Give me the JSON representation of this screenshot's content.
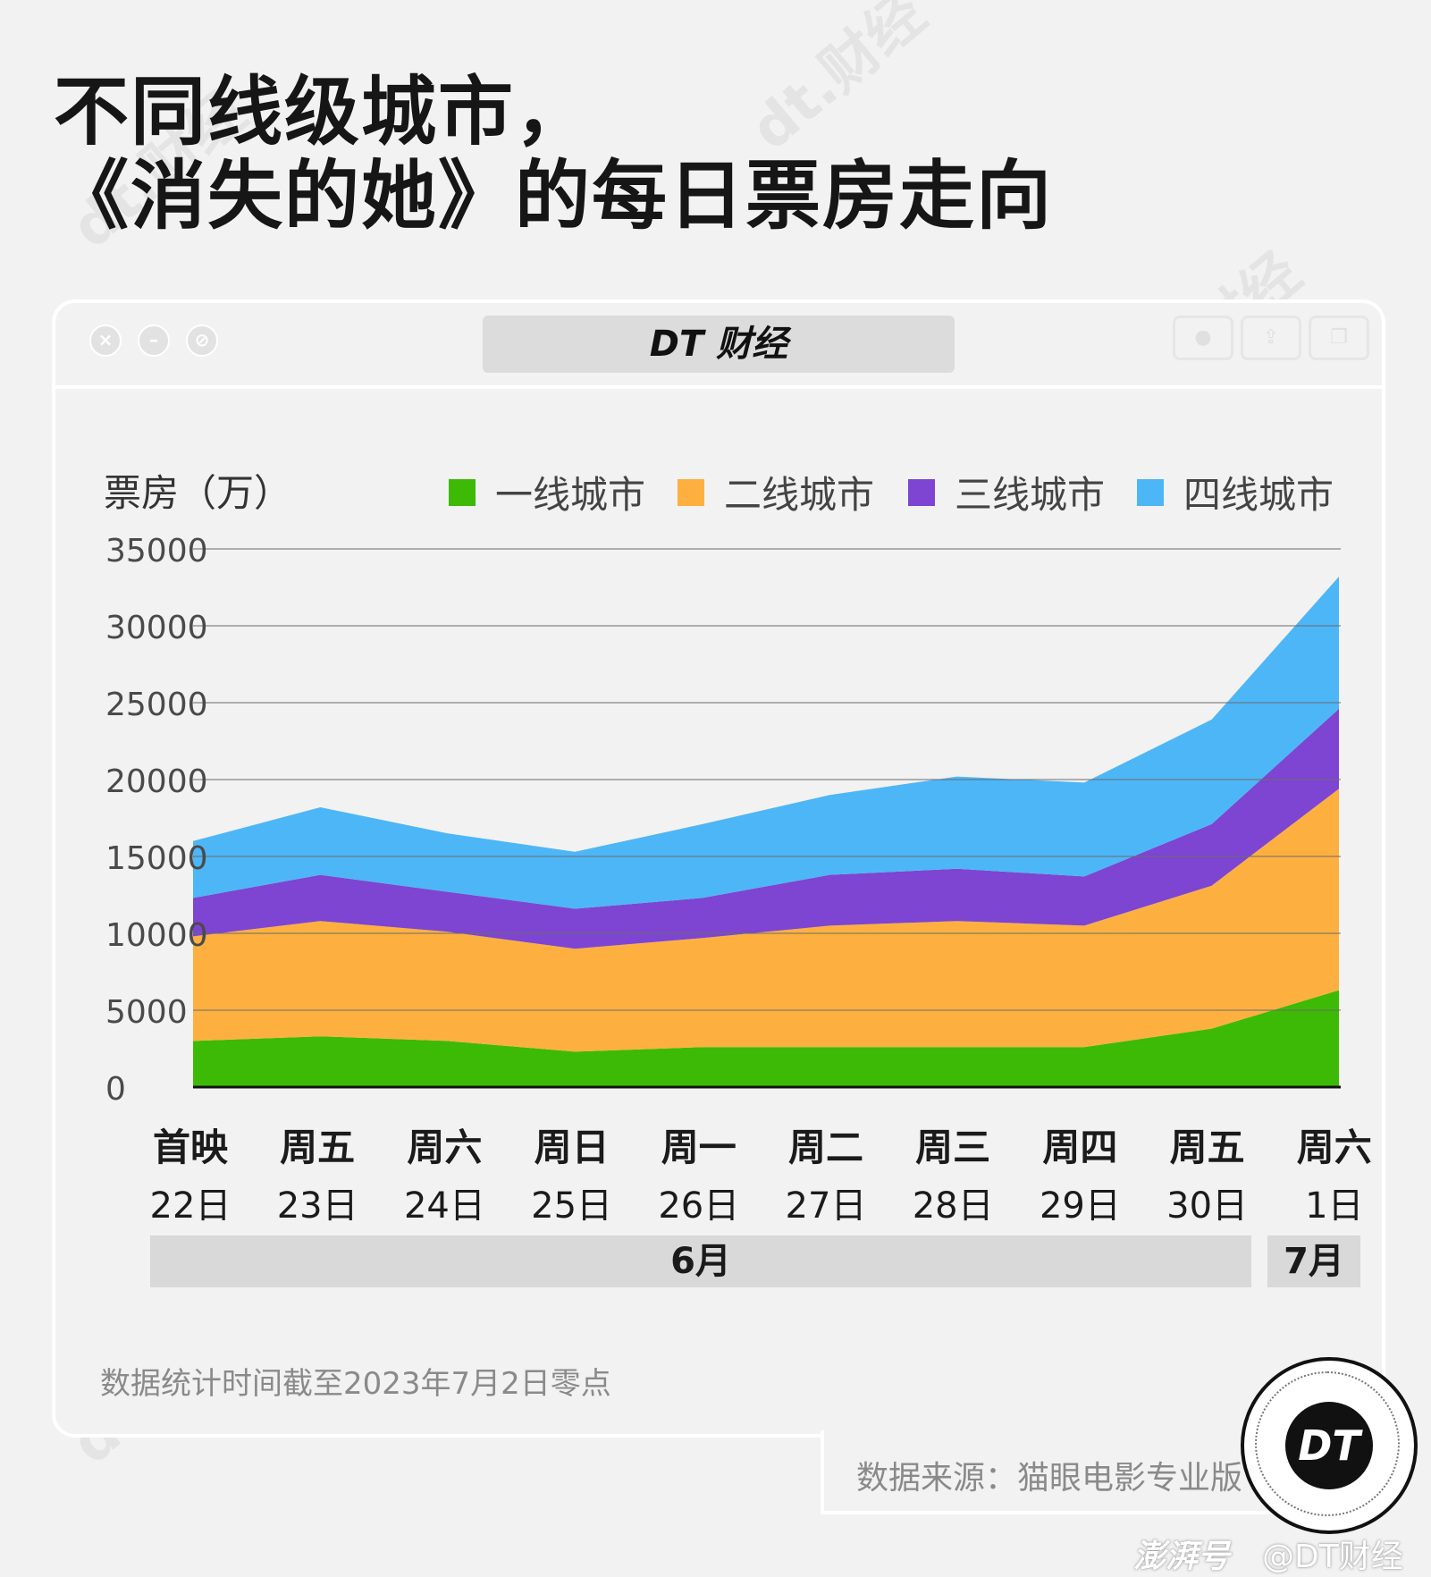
{
  "title_line1": "不同线级城市，",
  "title_line2": "《消失的她》的每日票房走向",
  "brand": "DT 财经",
  "badge": "DT",
  "watermark_text": "dt.财经",
  "chart_data": {
    "type": "area",
    "stacked": true,
    "ylabel": "票房（万）",
    "ylim": [
      0,
      35000
    ],
    "yticks": [
      0,
      5000,
      10000,
      15000,
      20000,
      25000,
      30000,
      35000
    ],
    "grid": true,
    "legend_position": "top-right",
    "categories": [
      "22日",
      "23日",
      "24日",
      "25日",
      "26日",
      "27日",
      "28日",
      "29日",
      "30日",
      "1日"
    ],
    "weekdays": [
      "首映",
      "周五",
      "周六",
      "周日",
      "周一",
      "周二",
      "周三",
      "周四",
      "周五",
      "周六"
    ],
    "months": [
      {
        "label": "6月",
        "span": 9
      },
      {
        "label": "7月",
        "span": 1
      }
    ],
    "series": [
      {
        "name": "一线城市",
        "color": "#3dba06",
        "values": [
          3000,
          3300,
          3000,
          2300,
          2600,
          2600,
          2600,
          2600,
          3800,
          6300
        ]
      },
      {
        "name": "二线城市",
        "color": "#fdb040",
        "values": [
          6800,
          7500,
          7100,
          6700,
          7100,
          7900,
          8200,
          7900,
          9300,
          13100
        ]
      },
      {
        "name": "三线城市",
        "color": "#7d45d1",
        "values": [
          2500,
          3000,
          2600,
          2600,
          2600,
          3300,
          3400,
          3200,
          4000,
          5200
        ]
      },
      {
        "name": "四线城市",
        "color": "#4db6f7",
        "values": [
          3700,
          4400,
          3800,
          3700,
          4800,
          5200,
          6000,
          6100,
          6800,
          8600
        ]
      }
    ]
  },
  "footnote": "数据统计时间截至2023年7月2日零点",
  "source": "数据来源：猫眼电影专业版",
  "credit_logo": "澎湃号",
  "credit": "@DT财经"
}
